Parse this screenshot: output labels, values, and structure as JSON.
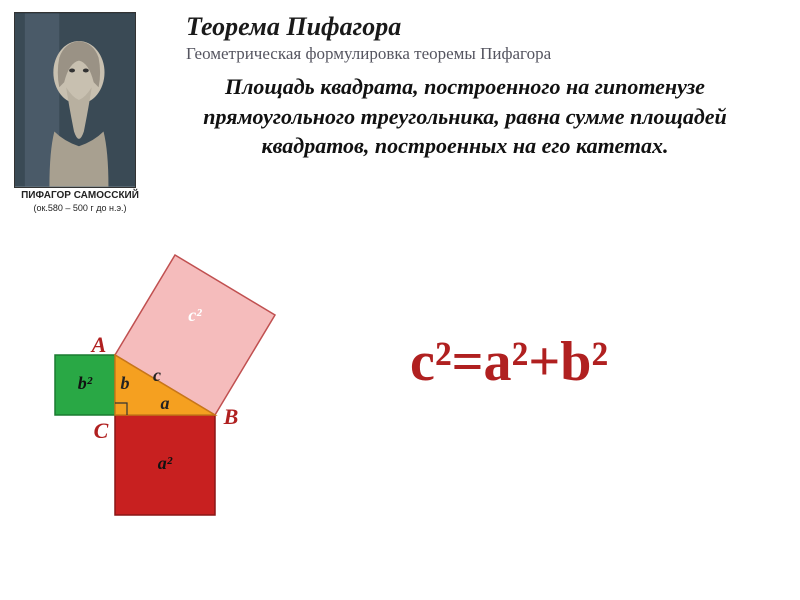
{
  "title": "Теорема Пифагора",
  "subtitle": "Геометрическая формулировка теоремы Пифагора",
  "statement": "Площадь квадрата, построенного на гипотенузе прямоугольного треугольника, равна сумме площадей квадратов, построенных на его катетах.",
  "caption": {
    "name": "ПИФАГОР САМОССКИЙ",
    "dates": "(ок.580 – 500 г до н.э.)"
  },
  "formula": "c²=a²+b²",
  "colors": {
    "formula": "#b02020",
    "square_c": "#f5bcbc",
    "square_c_stroke": "#c05050",
    "square_a": "#c82020",
    "square_a_stroke": "#8a1515",
    "square_b": "#29a845",
    "square_b_stroke": "#1a7a30",
    "triangle": "#f5a020",
    "triangle_stroke": "#c87818",
    "vertex_a": "#b02020",
    "vertex_b": "#b02020",
    "vertex_c": "#b02020",
    "label_c2": "#ffffff",
    "label_a2": "#111111",
    "label_b2": "#111111",
    "side_label": "#222222"
  },
  "geometry": {
    "a": 100,
    "b": 60,
    "C": [
      95,
      175
    ],
    "B": [
      195,
      175
    ],
    "A": [
      95,
      115
    ]
  },
  "labels": {
    "A": "A",
    "B": "B",
    "C": "C",
    "a": "a",
    "b": "b",
    "c": "c",
    "a2": "а²",
    "b2": "b²",
    "c2": "с²"
  },
  "fonts": {
    "title_size": 26,
    "subtitle_size": 17,
    "statement_size": 22,
    "formula_size": 56,
    "vertex_size": 22,
    "square_label_size": 18,
    "side_label_size": 18,
    "caption_size": 9
  }
}
